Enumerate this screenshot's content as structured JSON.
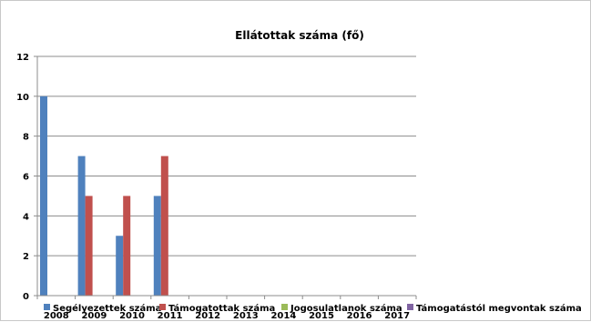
{
  "chart_data": {
    "type": "bar",
    "title": "Ellátottak száma (fő)",
    "xlabel": "",
    "ylabel": "",
    "categories": [
      "2008",
      "2009",
      "2010",
      "2011",
      "2012",
      "2013",
      "2014",
      "2015",
      "2016",
      "2017"
    ],
    "series": [
      {
        "name": "Segélyezettek száma",
        "color": "#4F81BD",
        "values": [
          10,
          7,
          3,
          5,
          0,
          0,
          0,
          0,
          0,
          0
        ]
      },
      {
        "name": "Támogatottak száma",
        "color": "#C0504D",
        "values": [
          0,
          5,
          5,
          7,
          0,
          0,
          0,
          0,
          0,
          0
        ]
      },
      {
        "name": "Jogosulatlanok száma",
        "color": "#9BBB59",
        "values": [
          0,
          0,
          0,
          0,
          0,
          0,
          0,
          0,
          0,
          0
        ]
      },
      {
        "name": "Támogatástól megvontak száma",
        "color": "#8064A2",
        "values": [
          0,
          0,
          0,
          0,
          0,
          0,
          0,
          0,
          0,
          0
        ]
      }
    ],
    "ylim": [
      0,
      12
    ],
    "yticks": [
      0,
      2,
      4,
      6,
      8,
      10,
      12
    ],
    "grid": true,
    "legend_position": "bottom"
  }
}
